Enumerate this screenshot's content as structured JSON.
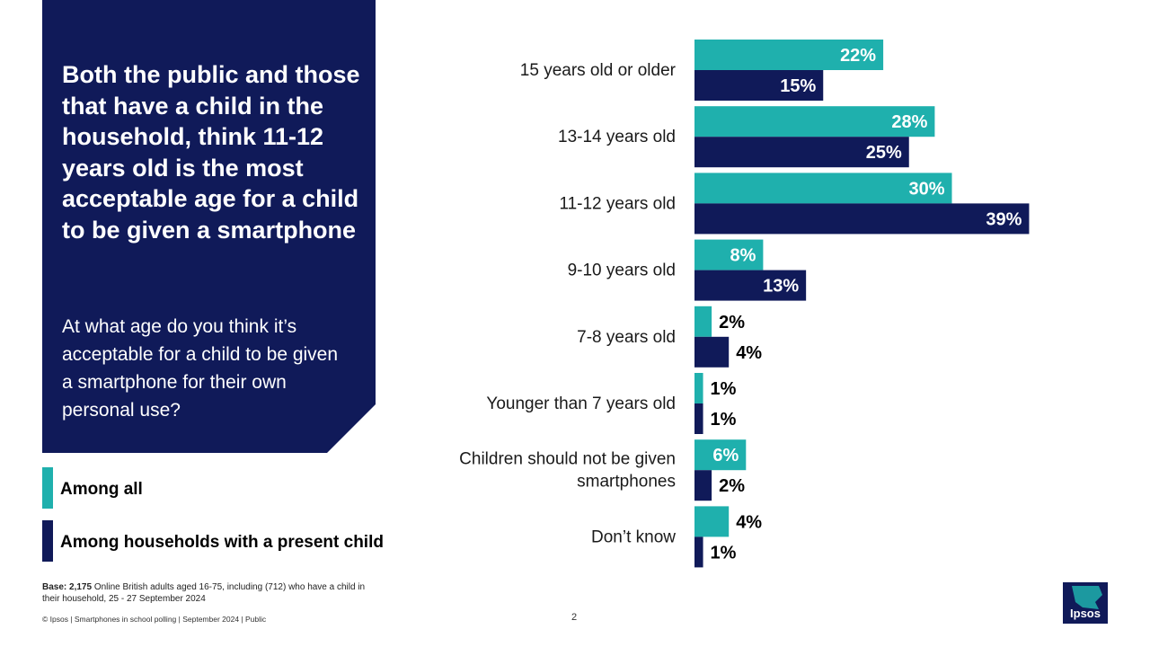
{
  "headline": "Both the public and those that have a child in the household, think 11-12 years old is the most acceptable age for a child to be given a smartphone",
  "question": "At what age do you think it’s acceptable for a child to be given a smartphone for their own personal use?",
  "legend": [
    {
      "label": "Among all",
      "color": "#1fb0ad"
    },
    {
      "label": "Among households with a present child",
      "color": "#101a59"
    }
  ],
  "base_note": {
    "bold": "Base: 2,175",
    "text": " Online British adults aged 16-75, including (712) who have a child in their household, 25 - 27 September 2024"
  },
  "footer": "© Ipsos | Smartphones in school polling | September 2024 | Public",
  "page_number": "2",
  "logo_text": "Ipsos",
  "chart_data": {
    "type": "bar",
    "orientation": "horizontal",
    "categories": [
      [
        "15 years old or older"
      ],
      [
        "13-14 years old"
      ],
      [
        "11-12 years old"
      ],
      [
        "9-10 years old"
      ],
      [
        "7-8 years old"
      ],
      [
        "Younger than 7 years old"
      ],
      [
        "Children should not be given",
        "smartphones"
      ],
      [
        "Don’t know"
      ]
    ],
    "series": [
      {
        "name": "Among all",
        "color": "#1fb0ad",
        "values": [
          22,
          28,
          30,
          8,
          2,
          1,
          6,
          4
        ]
      },
      {
        "name": "Among households with a present child",
        "color": "#101a59",
        "values": [
          15,
          25,
          39,
          13,
          4,
          1,
          2,
          1
        ]
      }
    ],
    "value_suffix": "%",
    "xlim": [
      0,
      39
    ]
  }
}
